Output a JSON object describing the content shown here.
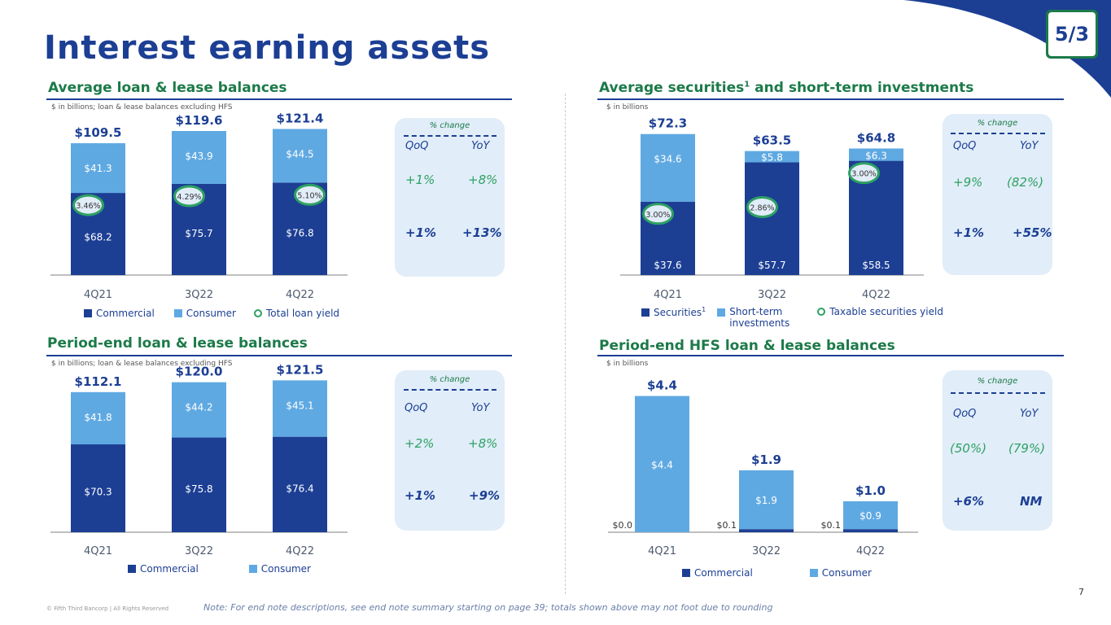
{
  "page": {
    "title": "Interest earning assets",
    "footer_note": "Note: For end note descriptions, see end note summary starting on page 39; totals shown above may not foot due to rounding",
    "copyright": "© Fifth Third Bancorp | All Rights Reserved",
    "page_number": "7",
    "logo_text": "5/3"
  },
  "colors": {
    "dark_blue": "#1c3f94",
    "light_blue": "#5fa9e2",
    "green": "#2ea163",
    "section_green": "#1c7a49",
    "panel_bg": "#e1edf8"
  },
  "panels": {
    "p1": {
      "title": "Average loan & lease balances",
      "subtitle": "$ in billions; loan & lease balances excluding HFS",
      "pct": {
        "title": "% change",
        "qoq": "QoQ",
        "yoy": "YoY",
        "row1": [
          "+1%",
          "+8%"
        ],
        "row2": [
          "+1%",
          "+13%"
        ]
      },
      "legend": [
        "Commercial",
        "Consumer",
        "Total loan yield"
      ]
    },
    "p2": {
      "title": "Average securities",
      "title_sup": "1",
      "title_rest": " and short-term investments",
      "subtitle": "$ in billions",
      "pct": {
        "title": "% change",
        "qoq": "QoQ",
        "yoy": "YoY",
        "row1": [
          "+9%",
          "(82%)"
        ],
        "row2": [
          "+1%",
          "+55%"
        ]
      },
      "legend": [
        "Securities",
        "Short-term",
        "investments",
        "Taxable securities yield"
      ],
      "legend_sup": "1"
    },
    "p3": {
      "title": "Period-end loan & lease balances",
      "subtitle": "$ in billions; loan & lease balances excluding HFS",
      "pct": {
        "title": "% change",
        "qoq": "QoQ",
        "yoy": "YoY",
        "row1": [
          "+2%",
          "+8%"
        ],
        "row2": [
          "+1%",
          "+9%"
        ]
      },
      "legend": [
        "Commercial",
        "Consumer"
      ]
    },
    "p4": {
      "title": "Period-end HFS loan & lease balances",
      "subtitle": "$ in billions",
      "pct": {
        "title": "% change",
        "qoq": "QoQ",
        "yoy": "YoY",
        "row1": [
          "(50%)",
          "(79%)"
        ],
        "row2": [
          "+6%",
          "NM"
        ]
      },
      "legend": [
        "Commercial",
        "Consumer"
      ]
    }
  },
  "chart_data": [
    {
      "id": "p1",
      "type": "bar",
      "stacked": true,
      "categories": [
        "4Q21",
        "3Q22",
        "4Q22"
      ],
      "series": [
        {
          "name": "Commercial",
          "values": [
            68.2,
            75.7,
            76.8
          ],
          "labels": [
            "$68.2",
            "$75.7",
            "$76.8"
          ]
        },
        {
          "name": "Consumer",
          "values": [
            41.3,
            43.9,
            44.5
          ],
          "labels": [
            "$41.3",
            "$43.9",
            "$44.5"
          ]
        }
      ],
      "totals": [
        "$109.5",
        "$119.6",
        "$121.4"
      ],
      "total_values": [
        109.5,
        119.6,
        121.4
      ],
      "yield_name": "Total loan yield",
      "yields": [
        "3.46%",
        "4.29%",
        "5.10%"
      ],
      "yield_values": [
        3.46,
        4.29,
        5.1
      ],
      "ylim": [
        0,
        125
      ]
    },
    {
      "id": "p2",
      "type": "bar",
      "stacked": true,
      "categories": [
        "4Q21",
        "3Q22",
        "4Q22"
      ],
      "series": [
        {
          "name": "Securities",
          "values": [
            37.6,
            57.7,
            58.5
          ],
          "labels": [
            "$37.6",
            "$57.7",
            "$58.5"
          ]
        },
        {
          "name": "Short-term investments",
          "values": [
            34.6,
            5.8,
            6.3
          ],
          "labels": [
            "$34.6",
            "$5.8",
            "$6.3"
          ]
        }
      ],
      "totals": [
        "$72.3",
        "$63.5",
        "$64.8"
      ],
      "total_values": [
        72.3,
        63.5,
        64.8
      ],
      "yield_name": "Taxable securities yield",
      "yields": [
        "3.00%",
        "2.86%",
        "3.00%"
      ],
      "yield_values": [
        3.0,
        2.86,
        3.0
      ],
      "ylim": [
        0,
        75
      ]
    },
    {
      "id": "p3",
      "type": "bar",
      "stacked": true,
      "categories": [
        "4Q21",
        "3Q22",
        "4Q22"
      ],
      "series": [
        {
          "name": "Commercial",
          "values": [
            70.3,
            75.8,
            76.4
          ],
          "labels": [
            "$70.3",
            "$75.8",
            "$76.4"
          ]
        },
        {
          "name": "Consumer",
          "values": [
            41.8,
            44.2,
            45.1
          ],
          "labels": [
            "$41.8",
            "$44.2",
            "$45.1"
          ]
        }
      ],
      "totals": [
        "$112.1",
        "$120.0",
        "$121.5"
      ],
      "total_values": [
        112.1,
        120.0,
        121.5
      ],
      "ylim": [
        0,
        125
      ]
    },
    {
      "id": "p4",
      "type": "bar",
      "stacked": true,
      "categories": [
        "4Q21",
        "3Q22",
        "4Q22"
      ],
      "series": [
        {
          "name": "Commercial",
          "values": [
            0.0,
            0.1,
            0.1
          ],
          "labels": [
            "$0.0",
            "$0.1",
            "$0.1"
          ]
        },
        {
          "name": "Consumer",
          "values": [
            4.4,
            1.9,
            0.9
          ],
          "labels": [
            "$4.4",
            "$1.9",
            "$0.9"
          ]
        }
      ],
      "totals": [
        "$4.4",
        "$1.9",
        "$1.0"
      ],
      "total_values": [
        4.4,
        1.9,
        1.0
      ],
      "ylim": [
        0,
        4.6
      ]
    }
  ]
}
